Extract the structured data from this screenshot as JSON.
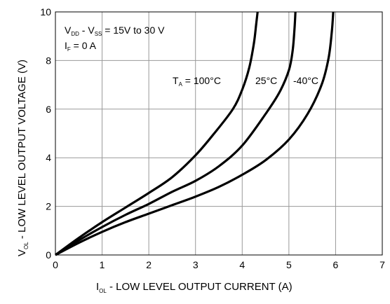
{
  "chart_data": {
    "type": "line",
    "title": "",
    "xlabel": {
      "main": "I",
      "sub": "OL",
      "rest": " - LOW LEVEL OUTPUT CURRENT (A)"
    },
    "ylabel": {
      "main": "V",
      "sub": "OL",
      "rest": " - LOW LEVEL OUTPUT VOLTAGE (V)"
    },
    "xlim": [
      0,
      7
    ],
    "ylim": [
      0,
      10
    ],
    "xticks": [
      "0",
      "1",
      "2",
      "3",
      "4",
      "5",
      "6",
      "7"
    ],
    "yticks": [
      "0",
      "2",
      "4",
      "6",
      "8",
      "10"
    ],
    "grid": true,
    "annotations": {
      "cond1": {
        "a": "V",
        "a_sub": "DD",
        "b": " - V",
        "b_sub": "SS",
        "c": " = 15V to 30 V"
      },
      "cond2": {
        "a": "I",
        "a_sub": "F",
        "b": " = 0 A"
      },
      "temp": {
        "a": "T",
        "a_sub": "A",
        "b": " = 100°C"
      },
      "t25": "25°C",
      "tm40": "-40°C"
    },
    "series": [
      {
        "temperature": "100°C",
        "x": [
          0,
          0.5,
          1,
          1.5,
          2,
          2.5,
          3,
          3.4,
          3.8,
          4.0,
          4.15,
          4.25,
          4.3,
          4.33
        ],
        "y": [
          0,
          0.7,
          1.35,
          1.95,
          2.55,
          3.2,
          4.1,
          5.0,
          6.0,
          6.8,
          7.7,
          8.7,
          9.5,
          10
        ]
      },
      {
        "temperature": "25°C",
        "x": [
          0,
          0.5,
          1,
          1.5,
          2,
          2.5,
          3,
          3.5,
          4,
          4.5,
          4.8,
          5.0,
          5.08,
          5.12,
          5.14
        ],
        "y": [
          0,
          0.6,
          1.15,
          1.65,
          2.1,
          2.6,
          3.05,
          3.65,
          4.5,
          5.8,
          6.7,
          7.6,
          8.4,
          9.3,
          10
        ]
      },
      {
        "temperature": "-40°C",
        "x": [
          0,
          0.5,
          1,
          1.5,
          2,
          2.5,
          3,
          3.5,
          4,
          4.5,
          5,
          5.4,
          5.7,
          5.85,
          5.92,
          5.95
        ],
        "y": [
          0,
          0.5,
          0.95,
          1.35,
          1.7,
          2.05,
          2.4,
          2.8,
          3.3,
          3.9,
          4.75,
          5.8,
          7.0,
          8.1,
          9.2,
          10
        ]
      }
    ]
  }
}
